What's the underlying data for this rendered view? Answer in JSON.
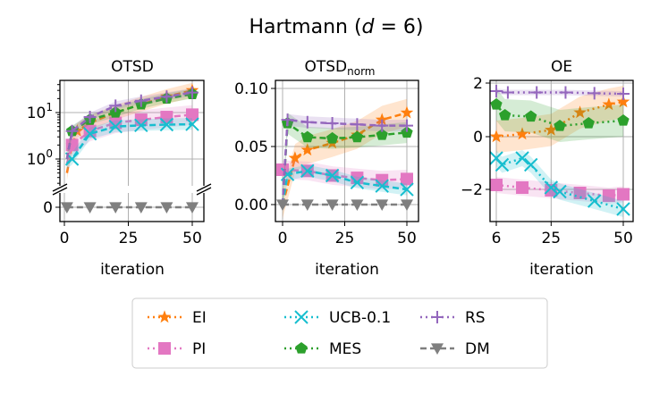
{
  "title": "Hartmann (d = 6)",
  "title_parts": {
    "prefix": "Hartmann (",
    "var": "d",
    "rest": " = 6)"
  },
  "colors": {
    "EI": "#ff7f0e",
    "PI": "#e377c2",
    "UCB-0.1": "#17becf",
    "MES": "#2ca02c",
    "RS": "#9467bd",
    "DM": "#7f7f7f"
  },
  "legend": {
    "placement": "bottom-center",
    "entries": [
      {
        "name": "EI",
        "marker": "star",
        "style": "dotted"
      },
      {
        "name": "PI",
        "marker": "square",
        "style": "dotted"
      },
      {
        "name": "UCB-0.1",
        "marker": "x",
        "style": "dotted"
      },
      {
        "name": "MES",
        "marker": "pentagon",
        "style": "dotted"
      },
      {
        "name": "RS",
        "marker": "plus",
        "style": "dotted"
      },
      {
        "name": "DM",
        "marker": "triangle-down",
        "style": "dashed"
      }
    ]
  },
  "chart_data": [
    {
      "type": "line",
      "title": "OTSD",
      "xlabel": "iteration",
      "ylabel": "",
      "yscale": "log with broken axis to 0",
      "xlim": [
        -2,
        54
      ],
      "xticks": [
        "0",
        "25",
        "50"
      ],
      "yticks": [
        "0",
        "10^0",
        "10^1"
      ],
      "grid": true,
      "line_style": "dashed",
      "series": [
        {
          "name": "EI",
          "x": [
            1,
            3,
            5,
            10,
            20,
            30,
            40,
            50
          ],
          "y": [
            0.5,
            2,
            4,
            6,
            10,
            15,
            22,
            30
          ],
          "band": 0.15
        },
        {
          "name": "PI",
          "x": [
            1,
            3,
            10,
            20,
            30,
            40,
            50
          ],
          "y": [
            0.8,
            2,
            4,
            6,
            7,
            8,
            9
          ],
          "band": 0.2
        },
        {
          "name": "UCB-0.1",
          "x": [
            1,
            3,
            10,
            20,
            30,
            40,
            50
          ],
          "y": [
            0.8,
            1,
            3.5,
            5,
            5.3,
            5.5,
            5.6
          ],
          "band": 0.12
        },
        {
          "name": "MES",
          "x": [
            1,
            3,
            10,
            20,
            30,
            40,
            50
          ],
          "y": [
            1,
            4,
            7,
            10,
            15,
            20,
            25
          ],
          "band": 0.1
        },
        {
          "name": "RS",
          "x": [
            1,
            3,
            10,
            20,
            30,
            40,
            50
          ],
          "y": [
            1,
            4,
            8,
            14,
            18,
            22,
            27
          ],
          "band": 0.08
        },
        {
          "name": "DM",
          "x": [
            1,
            10,
            20,
            30,
            40,
            50
          ],
          "y": [
            0,
            0,
            0,
            0,
            0,
            0
          ],
          "band": 0
        }
      ]
    },
    {
      "type": "line",
      "title": "OTSD",
      "title_sub": "norm",
      "xlabel": "iteration",
      "ylim": [
        -0.012,
        0.104
      ],
      "xlim": [
        -2,
        54
      ],
      "xticks": [
        "0",
        "25",
        "50"
      ],
      "yticks": [
        "0.00",
        "0.05",
        "0.10"
      ],
      "grid": true,
      "line_style": "dashed",
      "series": [
        {
          "name": "EI",
          "x": [
            0,
            5,
            10,
            20,
            30,
            40,
            50
          ],
          "y": [
            0,
            0.04,
            0.047,
            0.053,
            0.06,
            0.073,
            0.079
          ],
          "band": 0.012
        },
        {
          "name": "PI",
          "x": [
            0,
            10,
            20,
            30,
            40,
            50
          ],
          "y": [
            0.03,
            0.029,
            0.025,
            0.023,
            0.021,
            0.022
          ],
          "band": 0.008
        },
        {
          "name": "UCB-0.1",
          "x": [
            0,
            2,
            10,
            20,
            30,
            40,
            50
          ],
          "y": [
            0,
            0.026,
            0.029,
            0.025,
            0.019,
            0.016,
            0.013
          ],
          "band": 0.005
        },
        {
          "name": "MES",
          "x": [
            0,
            2,
            10,
            20,
            30,
            40,
            50
          ],
          "y": [
            0,
            0.07,
            0.058,
            0.057,
            0.058,
            0.06,
            0.062
          ],
          "band": 0.009
        },
        {
          "name": "RS",
          "x": [
            0,
            2,
            10,
            20,
            30,
            40,
            50
          ],
          "y": [
            0,
            0.073,
            0.071,
            0.07,
            0.069,
            0.068,
            0.068
          ],
          "band": 0.005
        },
        {
          "name": "DM",
          "x": [
            0,
            10,
            20,
            30,
            40,
            50
          ],
          "y": [
            0,
            0,
            0,
            0,
            0,
            0
          ],
          "band": 0
        }
      ]
    },
    {
      "type": "line",
      "title": "OE",
      "xlabel": "iteration",
      "ylim": [
        -3.2,
        2.05
      ],
      "xlim": [
        4,
        54
      ],
      "xticks": [
        "6",
        "25",
        "50"
      ],
      "yticks": [
        "-2",
        "0",
        "2"
      ],
      "grid": true,
      "line_style": "dotted",
      "series": [
        {
          "name": "EI",
          "x": [
            6,
            15,
            25,
            35,
            45,
            50
          ],
          "y": [
            0,
            0.1,
            0.25,
            0.9,
            1.2,
            1.3
          ],
          "band": 0.6
        },
        {
          "name": "PI",
          "x": [
            6,
            15,
            25,
            35,
            45,
            50
          ],
          "y": [
            -1.8,
            -1.9,
            -2.0,
            -2.1,
            -2.2,
            -2.15
          ],
          "band": 0.3
        },
        {
          "name": "UCB-0.1",
          "x": [
            6,
            8,
            15,
            18,
            25,
            28,
            40,
            50
          ],
          "y": [
            -0.8,
            -1.05,
            -0.8,
            -1.05,
            -1.9,
            -2.05,
            -2.4,
            -2.7
          ],
          "band": 0.3
        },
        {
          "name": "MES",
          "x": [
            6,
            9,
            18,
            28,
            38,
            50
          ],
          "y": [
            1.2,
            0.8,
            0.75,
            0.4,
            0.5,
            0.6
          ],
          "band": 0.6
        },
        {
          "name": "RS",
          "x": [
            6,
            10,
            20,
            30,
            40,
            50
          ],
          "y": [
            1.7,
            1.65,
            1.65,
            1.65,
            1.62,
            1.6
          ],
          "band": 0.1
        }
      ]
    }
  ]
}
